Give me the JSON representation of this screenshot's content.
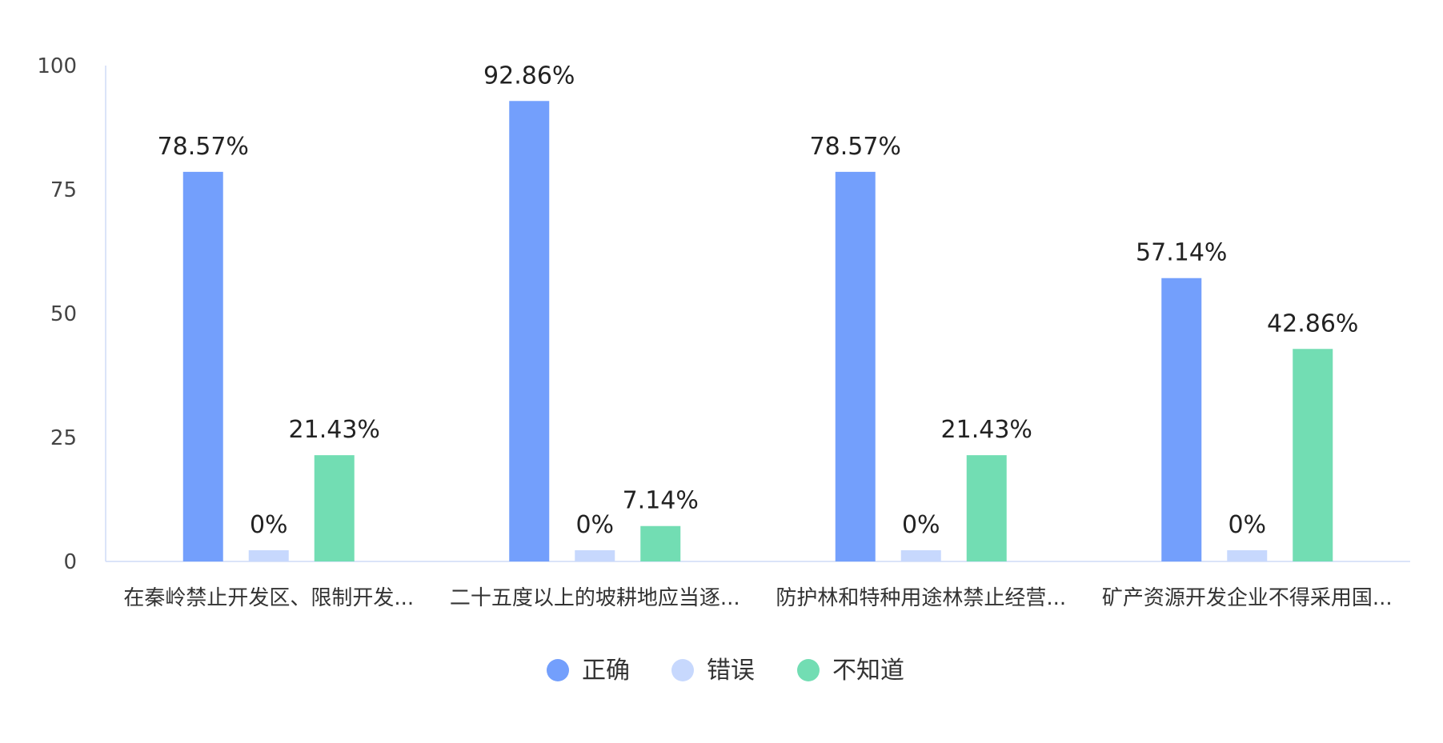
{
  "chart_data": {
    "type": "bar",
    "title": "",
    "xlabel": "",
    "ylabel": "",
    "ylim": [
      0,
      100
    ],
    "yticks": [
      0,
      25,
      50,
      75,
      100
    ],
    "grid": false,
    "legend_position": "bottom-center",
    "categories": [
      "在秦岭禁止开发区、限制开发...",
      "二十五度以上的坡耕地应当逐...",
      "防护林和特种用途林禁止经营...",
      "矿产资源开发企业不得采用国..."
    ],
    "series": [
      {
        "name": "正确",
        "color": "#739ffc",
        "values": [
          78.57,
          92.86,
          78.57,
          57.14
        ],
        "labels": [
          "78.57%",
          "92.86%",
          "78.57%",
          "57.14%"
        ]
      },
      {
        "name": "错误",
        "color": "#c7d8fd",
        "values": [
          0,
          0,
          0,
          0
        ],
        "labels": [
          "0%",
          "0%",
          "0%",
          "0%"
        ]
      },
      {
        "name": "不知道",
        "color": "#72ddb3",
        "values": [
          21.43,
          7.14,
          21.43,
          42.86
        ],
        "labels": [
          "21.43%",
          "7.14%",
          "21.43%",
          "42.86%"
        ]
      }
    ]
  }
}
